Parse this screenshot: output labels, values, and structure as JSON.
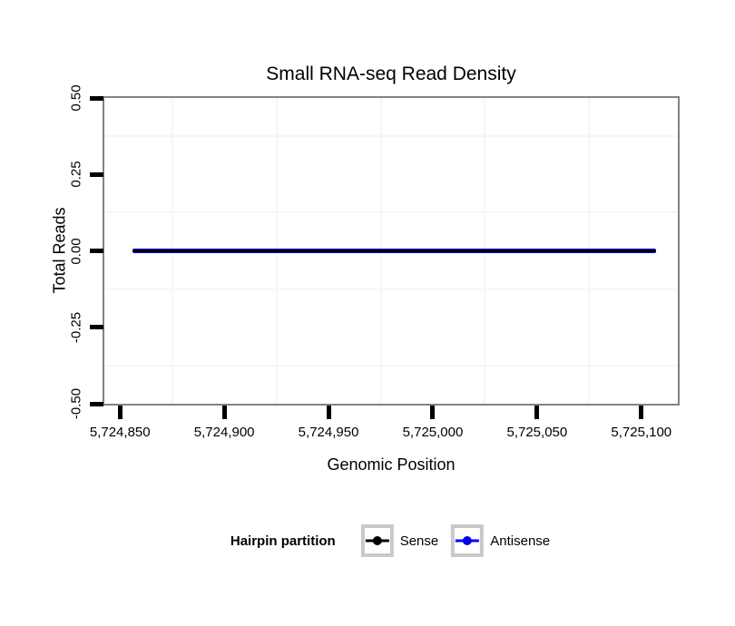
{
  "chart_data": {
    "type": "line",
    "title": "Small RNA-seq Read Density",
    "xlabel": "Genomic Position",
    "ylabel": "Total Reads",
    "xlim": [
      5724842.5,
      5725117.5
    ],
    "ylim": [
      -0.5,
      0.5
    ],
    "x_ticks": [
      {
        "value": 5724850,
        "label": "5,724,850"
      },
      {
        "value": 5724900,
        "label": "5,724,900"
      },
      {
        "value": 5724950,
        "label": "5,724,950"
      },
      {
        "value": 5725000,
        "label": "5,725,000"
      },
      {
        "value": 5725050,
        "label": "5,725,050"
      },
      {
        "value": 5725100,
        "label": "5,725,100"
      }
    ],
    "y_ticks": [
      {
        "value": 0.5,
        "label": "0.50"
      },
      {
        "value": 0.25,
        "label": "0.25"
      },
      {
        "value": 0.0,
        "label": "0.00"
      },
      {
        "value": -0.25,
        "label": "-0.25"
      },
      {
        "value": -0.5,
        "label": "-0.50"
      }
    ],
    "grid": {
      "major": false,
      "minor": true
    },
    "series": [
      {
        "name": "Sense",
        "color": "#000000",
        "x": [
          5724856,
          5725107
        ],
        "y": [
          0,
          0
        ]
      },
      {
        "name": "Antisense",
        "color": "#0000ee",
        "x": [
          5724856,
          5725107
        ],
        "y": [
          0,
          0
        ]
      }
    ],
    "legend": {
      "title": "Hairpin partition",
      "position": "bottom",
      "entries": [
        {
          "label": "Sense",
          "color": "#000000"
        },
        {
          "label": "Antisense",
          "color": "#0000ee"
        }
      ]
    }
  },
  "colors": {
    "background": "#ffffff",
    "panel_border": "#838383",
    "axis_tick": "#000000",
    "grid_minor": "#f6f6f6",
    "legend_key_border": "#c9c9c9"
  }
}
